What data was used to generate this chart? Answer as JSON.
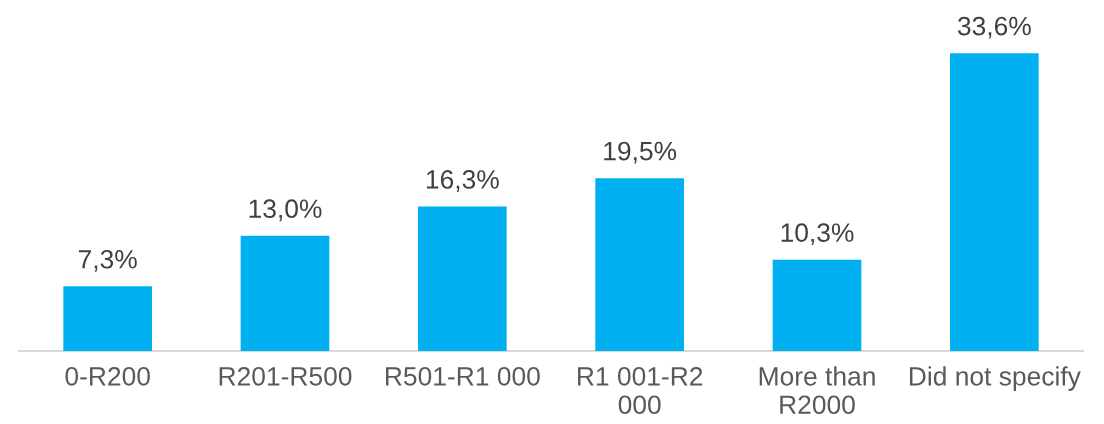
{
  "chart_data": {
    "type": "bar",
    "categories": [
      "0-R200",
      "R201-R500",
      "R501-R1 000",
      "R1 001-R2 000",
      "More than R2000",
      "Did not specify"
    ],
    "values": [
      7.3,
      13.0,
      16.3,
      19.5,
      10.3,
      33.6
    ],
    "color": "#00b0f0",
    "value_labels": [
      "7,3%",
      "13,0%",
      "16,3%",
      "19,5%",
      "10,3%",
      "33,6%"
    ],
    "tick_labels": "x"
  }
}
